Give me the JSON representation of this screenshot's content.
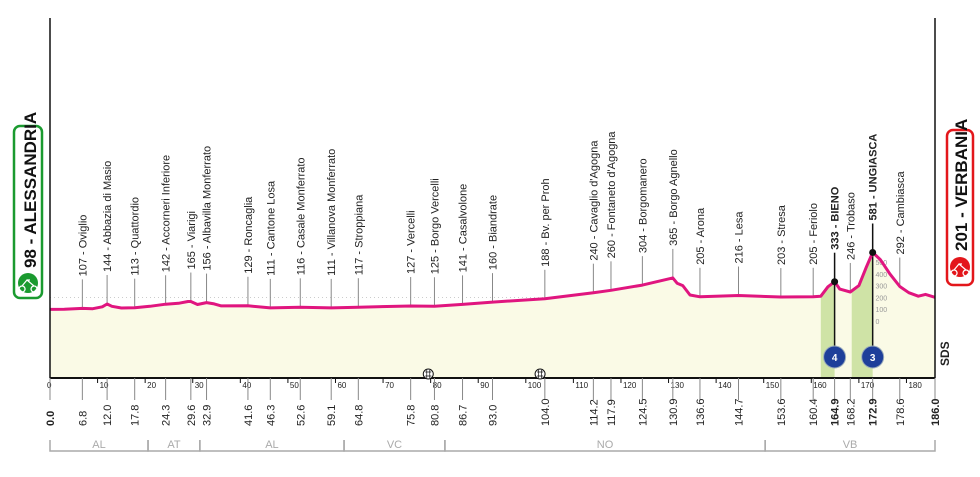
{
  "chart_data": {
    "type": "area",
    "title": "",
    "xlabel": "",
    "ylabel": "",
    "xlim": [
      0,
      186
    ],
    "x_ticks": [
      0,
      10,
      20,
      30,
      40,
      50,
      60,
      70,
      80,
      90,
      100,
      110,
      120,
      130,
      140,
      150,
      160,
      170,
      180
    ],
    "elevation_scale_ticks": [
      0,
      100,
      200,
      300,
      400,
      500
    ],
    "start": {
      "label": "98 - ALESSANDRIA",
      "km": "0.0",
      "color": "#1a9a2f"
    },
    "finish": {
      "label": "201 - VERBANIA",
      "km": "186.0",
      "color": "#e3161b"
    },
    "line_color": "#e0157f",
    "fill_color": "#fafae6",
    "climb_fill_color": "#cfe3a6",
    "profile": [
      [
        0,
        98
      ],
      [
        3,
        100
      ],
      [
        6.8,
        107
      ],
      [
        9,
        104
      ],
      [
        11,
        120
      ],
      [
        12,
        144
      ],
      [
        13,
        125
      ],
      [
        15,
        110
      ],
      [
        17.8,
        113
      ],
      [
        21,
        125
      ],
      [
        24.3,
        142
      ],
      [
        27,
        150
      ],
      [
        29,
        165
      ],
      [
        29.6,
        165
      ],
      [
        31,
        140
      ],
      [
        32.9,
        156
      ],
      [
        34.5,
        145
      ],
      [
        36,
        128
      ],
      [
        41.6,
        129
      ],
      [
        46.3,
        111
      ],
      [
        52.6,
        116
      ],
      [
        59.1,
        111
      ],
      [
        64.8,
        117
      ],
      [
        75.8,
        127
      ],
      [
        80.8,
        125
      ],
      [
        86.7,
        141
      ],
      [
        93,
        160
      ],
      [
        104,
        188
      ],
      [
        114.2,
        240
      ],
      [
        117.9,
        260
      ],
      [
        124.5,
        304
      ],
      [
        130.9,
        365
      ],
      [
        131.8,
        320
      ],
      [
        133,
        300
      ],
      [
        134.5,
        220
      ],
      [
        136.6,
        205
      ],
      [
        144.7,
        216
      ],
      [
        153.6,
        203
      ],
      [
        160.4,
        205
      ],
      [
        162,
        210
      ],
      [
        163.5,
        290
      ],
      [
        164.9,
        333
      ],
      [
        166,
        270
      ],
      [
        168.2,
        246
      ],
      [
        170,
        300
      ],
      [
        171.5,
        450
      ],
      [
        172.9,
        581
      ],
      [
        174.5,
        520
      ],
      [
        176.5,
        400
      ],
      [
        178.6,
        292
      ],
      [
        180.5,
        240
      ],
      [
        182.5,
        210
      ],
      [
        184,
        225
      ],
      [
        186,
        201
      ]
    ],
    "locations": [
      {
        "km": 6.8,
        "text": "107 - Oviglio",
        "bold": false
      },
      {
        "km": 12.0,
        "text": "144 - Abbazia di Masio",
        "bold": false
      },
      {
        "km": 17.8,
        "text": "113 - Quattordio",
        "bold": false
      },
      {
        "km": 24.3,
        "text": "142 - Accorneri Inferiore",
        "bold": false
      },
      {
        "km": 29.6,
        "text": "165 - Viarigi",
        "bold": false
      },
      {
        "km": 32.9,
        "text": "156 - Albavilla Monferrato",
        "bold": false
      },
      {
        "km": 41.6,
        "text": "129 - Roncaglia",
        "bold": false
      },
      {
        "km": 46.3,
        "text": "111 - Cantone Losa",
        "bold": false
      },
      {
        "km": 52.6,
        "text": "116 - Casale Monferrato",
        "bold": false
      },
      {
        "km": 59.1,
        "text": "111 - Villanova Monferrato",
        "bold": false
      },
      {
        "km": 64.8,
        "text": "117 - Stroppiana",
        "bold": false
      },
      {
        "km": 75.8,
        "text": "127 - Vercelli",
        "bold": false
      },
      {
        "km": 80.8,
        "text": "125 - Borgo Vercelli",
        "bold": false
      },
      {
        "km": 86.7,
        "text": "141 - Casalvolone",
        "bold": false
      },
      {
        "km": 93.0,
        "text": "160 - Biandrate",
        "bold": false
      },
      {
        "km": 104.0,
        "text": "188 - Bv. per Proh",
        "bold": false
      },
      {
        "km": 114.2,
        "text": "240 - Cavaglio d'Agogna",
        "bold": false
      },
      {
        "km": 117.9,
        "text": "260 - Fontaneto d'Agogna",
        "bold": false
      },
      {
        "km": 124.5,
        "text": "304 - Borgomanero",
        "bold": false
      },
      {
        "km": 130.9,
        "text": "365 - Borgo Agnello",
        "bold": false
      },
      {
        "km": 136.6,
        "text": "205 - Arona",
        "bold": false
      },
      {
        "km": 144.7,
        "text": "216 - Lesa",
        "bold": false
      },
      {
        "km": 153.6,
        "text": "203 - Stresa",
        "bold": false
      },
      {
        "km": 160.4,
        "text": "205 - Feriolo",
        "bold": false
      },
      {
        "km": 164.9,
        "text": "333 - BIENO",
        "bold": true
      },
      {
        "km": 168.2,
        "text": "246 - Trobaso",
        "bold": false
      },
      {
        "km": 172.9,
        "text": "581 - UNGIASCA",
        "bold": true
      },
      {
        "km": 178.6,
        "text": "292 - Cambiasca",
        "bold": false
      }
    ],
    "distance_labels": [
      {
        "km": 0.0,
        "text": "0.0",
        "bold": true
      },
      {
        "km": 6.8,
        "text": "6.8",
        "bold": false
      },
      {
        "km": 12.0,
        "text": "12.0",
        "bold": false
      },
      {
        "km": 17.8,
        "text": "17.8",
        "bold": false
      },
      {
        "km": 24.3,
        "text": "24.3",
        "bold": false
      },
      {
        "km": 29.6,
        "text": "29.6",
        "bold": false
      },
      {
        "km": 32.9,
        "text": "32.9",
        "bold": false
      },
      {
        "km": 41.6,
        "text": "41.6",
        "bold": false
      },
      {
        "km": 46.3,
        "text": "46.3",
        "bold": false
      },
      {
        "km": 52.6,
        "text": "52.6",
        "bold": false
      },
      {
        "km": 59.1,
        "text": "59.1",
        "bold": false
      },
      {
        "km": 64.8,
        "text": "64.8",
        "bold": false
      },
      {
        "km": 75.8,
        "text": "75.8",
        "bold": false
      },
      {
        "km": 80.8,
        "text": "80.8",
        "bold": false
      },
      {
        "km": 86.7,
        "text": "86.7",
        "bold": false
      },
      {
        "km": 93.0,
        "text": "93.0",
        "bold": false
      },
      {
        "km": 104.0,
        "text": "104.0",
        "bold": false
      },
      {
        "km": 114.2,
        "text": "114.2",
        "bold": false
      },
      {
        "km": 117.9,
        "text": "117.9",
        "bold": false
      },
      {
        "km": 124.5,
        "text": "124.5",
        "bold": false
      },
      {
        "km": 130.9,
        "text": "130.9",
        "bold": false
      },
      {
        "km": 136.6,
        "text": "136.6",
        "bold": false
      },
      {
        "km": 144.7,
        "text": "144.7",
        "bold": false
      },
      {
        "km": 153.6,
        "text": "153.6",
        "bold": false
      },
      {
        "km": 160.4,
        "text": "160.4",
        "bold": false
      },
      {
        "km": 164.9,
        "text": "164.9",
        "bold": true
      },
      {
        "km": 168.2,
        "text": "168.2",
        "bold": false
      },
      {
        "km": 172.9,
        "text": "172.9",
        "bold": true
      },
      {
        "km": 178.6,
        "text": "178.6",
        "bold": false
      },
      {
        "km": 186.0,
        "text": "186.0",
        "bold": true
      }
    ],
    "climbs": [
      {
        "km": 164.9,
        "start_km": 162.0,
        "category": "4"
      },
      {
        "km": 172.9,
        "start_km": 168.5,
        "category": "3"
      }
    ],
    "sprints": [
      {
        "km": 79.5
      },
      {
        "km": 103.0
      }
    ],
    "regions": [
      {
        "code": "AL",
        "from": 0,
        "to": 20.6
      },
      {
        "code": "AT",
        "from": 20.6,
        "to": 31.5
      },
      {
        "code": "AL",
        "from": 31.5,
        "to": 61.8
      },
      {
        "code": "VC",
        "from": 61.8,
        "to": 83.0
      },
      {
        "code": "NO",
        "from": 83.0,
        "to": 150.3
      },
      {
        "code": "VB",
        "from": 150.3,
        "to": 186.0
      }
    ],
    "logo_text": "SDS"
  }
}
